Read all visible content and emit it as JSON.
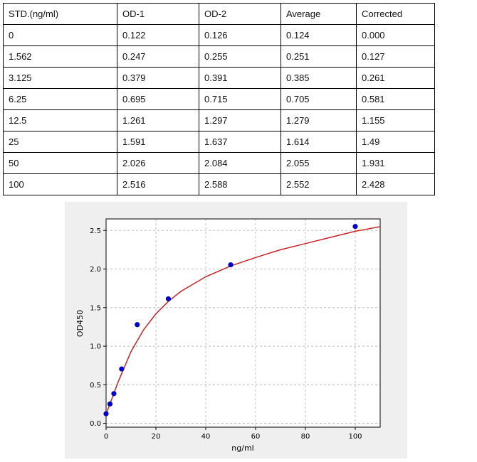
{
  "table": {
    "headers": [
      "STD.(ng/ml)",
      "OD-1",
      "OD-2",
      "Average",
      "Corrected"
    ],
    "rows": [
      [
        "0",
        "0.122",
        "0.126",
        "0.124",
        "0.000"
      ],
      [
        "1.562",
        "0.247",
        "0.255",
        "0.251",
        "0.127"
      ],
      [
        "3.125",
        "0.379",
        "0.391",
        "0.385",
        "0.261"
      ],
      [
        "6.25",
        "0.695",
        "0.715",
        "0.705",
        "0.581"
      ],
      [
        "12.5",
        "1.261",
        "1.297",
        "1.279",
        "1.155"
      ],
      [
        "25",
        "1.591",
        "1.637",
        "1.614",
        "1.49"
      ],
      [
        "50",
        "2.026",
        "2.084",
        "2.055",
        "1.931"
      ],
      [
        "100",
        "2.516",
        "2.588",
        "2.552",
        "2.428"
      ]
    ]
  },
  "chart_data": {
    "type": "scatter",
    "title": "",
    "xlabel": "ng/ml",
    "ylabel": "OD450",
    "xlim": [
      0,
      110
    ],
    "ylim": [
      -0.05,
      2.65
    ],
    "xticks": [
      "0",
      "20",
      "40",
      "60",
      "80",
      "100"
    ],
    "yticks": [
      "0.0",
      "0.5",
      "1.0",
      "1.5",
      "2.0",
      "2.5"
    ],
    "grid": true,
    "series": [
      {
        "kind": "points",
        "color": "#0000cc",
        "x": [
          0,
          1.562,
          3.125,
          6.25,
          12.5,
          25,
          50,
          100
        ],
        "y": [
          0.124,
          0.251,
          0.385,
          0.705,
          1.279,
          1.614,
          2.055,
          2.552
        ]
      },
      {
        "kind": "fit-curve",
        "color": "#cc2222",
        "x": [
          0,
          2,
          5,
          10,
          15,
          20,
          25,
          30,
          40,
          50,
          60,
          70,
          80,
          90,
          100,
          110
        ],
        "y": [
          0.12,
          0.29,
          0.55,
          0.93,
          1.21,
          1.42,
          1.58,
          1.71,
          1.9,
          2.04,
          2.15,
          2.25,
          2.33,
          2.41,
          2.49,
          2.55
        ]
      }
    ]
  }
}
